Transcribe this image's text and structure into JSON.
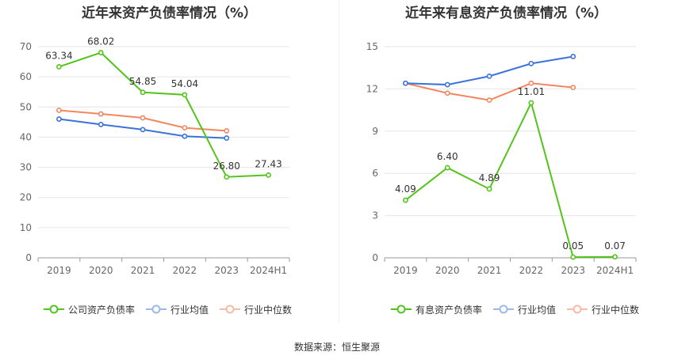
{
  "colors": {
    "green": "#52c41a",
    "blue": "#3b73d9",
    "orange": "#f0875f",
    "grid": "#e6e6e6",
    "axis": "#666666",
    "label": "#333333"
  },
  "chart_data": [
    {
      "type": "line",
      "title": "近年来资产负债率情况（%）",
      "categories": [
        "2019",
        "2020",
        "2021",
        "2022",
        "2023",
        "2024H1"
      ],
      "ylim": [
        0,
        70
      ],
      "yticks": [
        0,
        10,
        20,
        30,
        40,
        50,
        60,
        70
      ],
      "grid": true,
      "legend_position": "bottom",
      "series": [
        {
          "name": "公司资产负债率",
          "color": "#52c41a",
          "values": [
            63.34,
            68.02,
            54.85,
            54.04,
            26.8,
            27.43
          ],
          "labels": [
            "63.34",
            "68.02",
            "54.85",
            "54.04",
            "26.80",
            "27.43"
          ]
        },
        {
          "name": "行业均值",
          "color": "#3b73d9",
          "values": [
            46.0,
            44.2,
            42.5,
            40.3,
            39.7,
            null
          ]
        },
        {
          "name": "行业中位数",
          "color": "#f0875f",
          "values": [
            48.9,
            47.7,
            46.4,
            43.1,
            42.1,
            null
          ]
        }
      ]
    },
    {
      "type": "line",
      "title": "近年来有息资产负债率情况（%）",
      "categories": [
        "2019",
        "2020",
        "2021",
        "2022",
        "2023",
        "2024H1"
      ],
      "ylim": [
        0,
        15
      ],
      "yticks": [
        0,
        3,
        6,
        9,
        12,
        15
      ],
      "grid": true,
      "legend_position": "bottom",
      "series": [
        {
          "name": "有息资产负债率",
          "color": "#52c41a",
          "values": [
            4.09,
            6.4,
            4.89,
            11.01,
            0.05,
            0.07
          ],
          "labels": [
            "4.09",
            "6.40",
            "4.89",
            "11.01",
            "0.05",
            "0.07"
          ]
        },
        {
          "name": "行业均值",
          "color": "#3b73d9",
          "values": [
            12.4,
            12.3,
            12.9,
            13.8,
            14.3,
            null
          ]
        },
        {
          "name": "行业中位数",
          "color": "#f0875f",
          "values": [
            12.4,
            11.7,
            11.2,
            12.4,
            12.1,
            null
          ]
        }
      ]
    }
  ],
  "footer": {
    "source": "数据来源：恒生聚源"
  }
}
